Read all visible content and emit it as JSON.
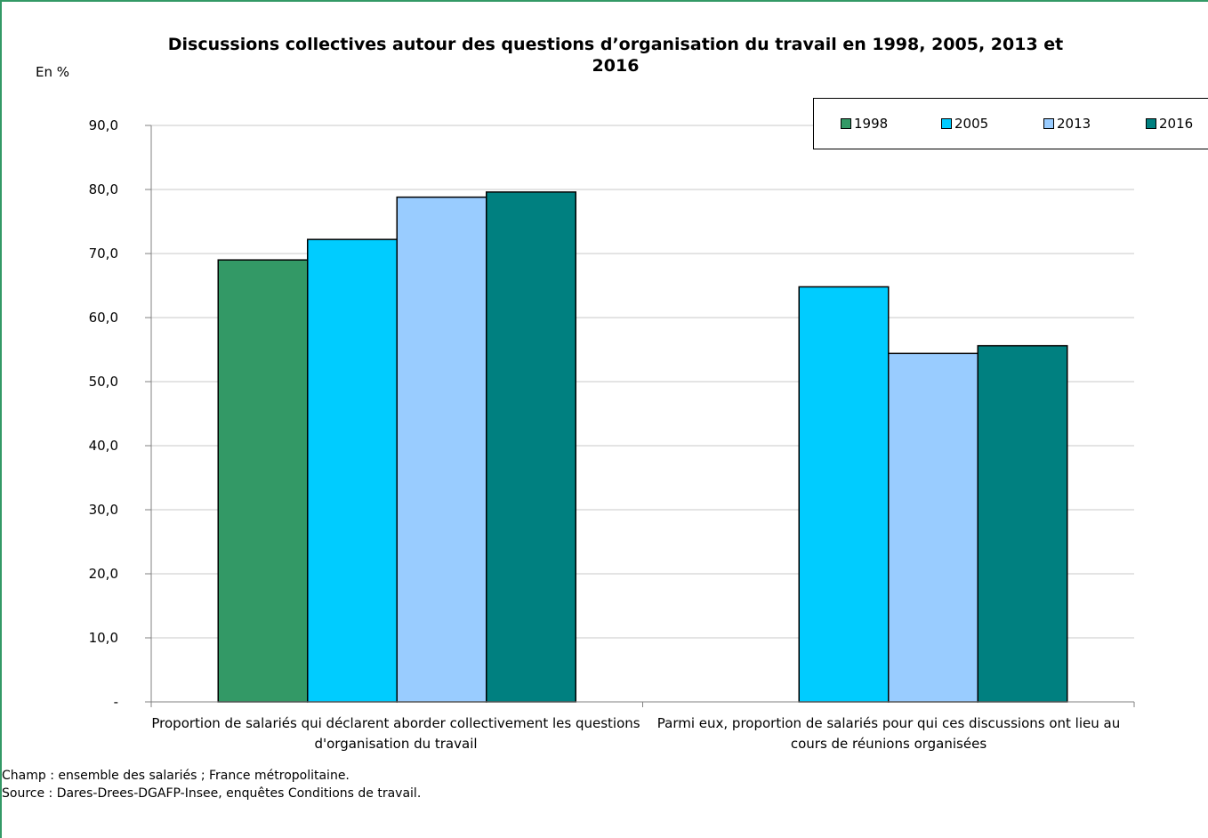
{
  "chart_data": {
    "type": "bar",
    "title": "Discussions collectives autour des questions d’organisation du travail en 1998, 2005, 2013 et 2016",
    "ylabel": "En %",
    "ylim": [
      0,
      90
    ],
    "yticks": [
      "-",
      "10,0",
      "20,0",
      "30,0",
      "40,0",
      "50,0",
      "60,0",
      "70,0",
      "80,0",
      "90,0"
    ],
    "grid": true,
    "legend_position": "top-right",
    "categories": [
      "Proportion de salariés qui déclarent aborder collectivement les questions d'organisation du travail",
      "Parmi eux, proportion de salariés pour qui ces discussions ont lieu au cours de réunions organisées"
    ],
    "series": [
      {
        "name": "1998",
        "color": "#339966",
        "values": [
          69.0,
          null
        ]
      },
      {
        "name": "2005",
        "color": "#00CCFF",
        "values": [
          72.2,
          64.8
        ]
      },
      {
        "name": "2013",
        "color": "#99CCFF",
        "values": [
          78.8,
          54.4
        ]
      },
      {
        "name": "2016",
        "color": "#008080",
        "values": [
          79.6,
          55.6
        ]
      }
    ]
  },
  "notes": {
    "champ": "Champ : ensemble des salariés ; France métropolitaine.",
    "source": "Source : Dares-Drees-DGAFP-Insee, enquêtes Conditions de travail."
  }
}
